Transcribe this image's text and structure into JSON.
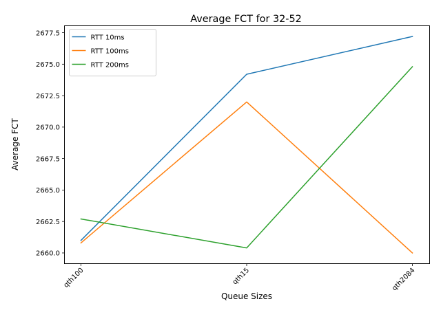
{
  "chart_data": {
    "type": "line",
    "title": "Average FCT for 32-52",
    "xlabel": "Queue Sizes",
    "ylabel": "Average FCT",
    "categories": [
      "qth100",
      "qth15",
      "qth2084"
    ],
    "ylim": [
      2659.15,
      2678.05
    ],
    "yticks": [
      2660.0,
      2662.5,
      2665.0,
      2667.5,
      2670.0,
      2672.5,
      2675.0,
      2677.5
    ],
    "ytick_labels": [
      "2660.0",
      "2662.5",
      "2665.0",
      "2667.5",
      "2670.0",
      "2672.5",
      "2675.0",
      "2677.5"
    ],
    "grid": false,
    "legend_position": "top-left",
    "series": [
      {
        "name": "RTT 10ms",
        "color": "#1f77b4",
        "values": [
          2661.0,
          2674.2,
          2677.2
        ]
      },
      {
        "name": "RTT 100ms",
        "color": "#ff7f0e",
        "values": [
          2660.8,
          2672.0,
          2660.0
        ]
      },
      {
        "name": "RTT 200ms",
        "color": "#2ca02c",
        "values": [
          2662.7,
          2660.4,
          2674.8
        ]
      }
    ]
  }
}
